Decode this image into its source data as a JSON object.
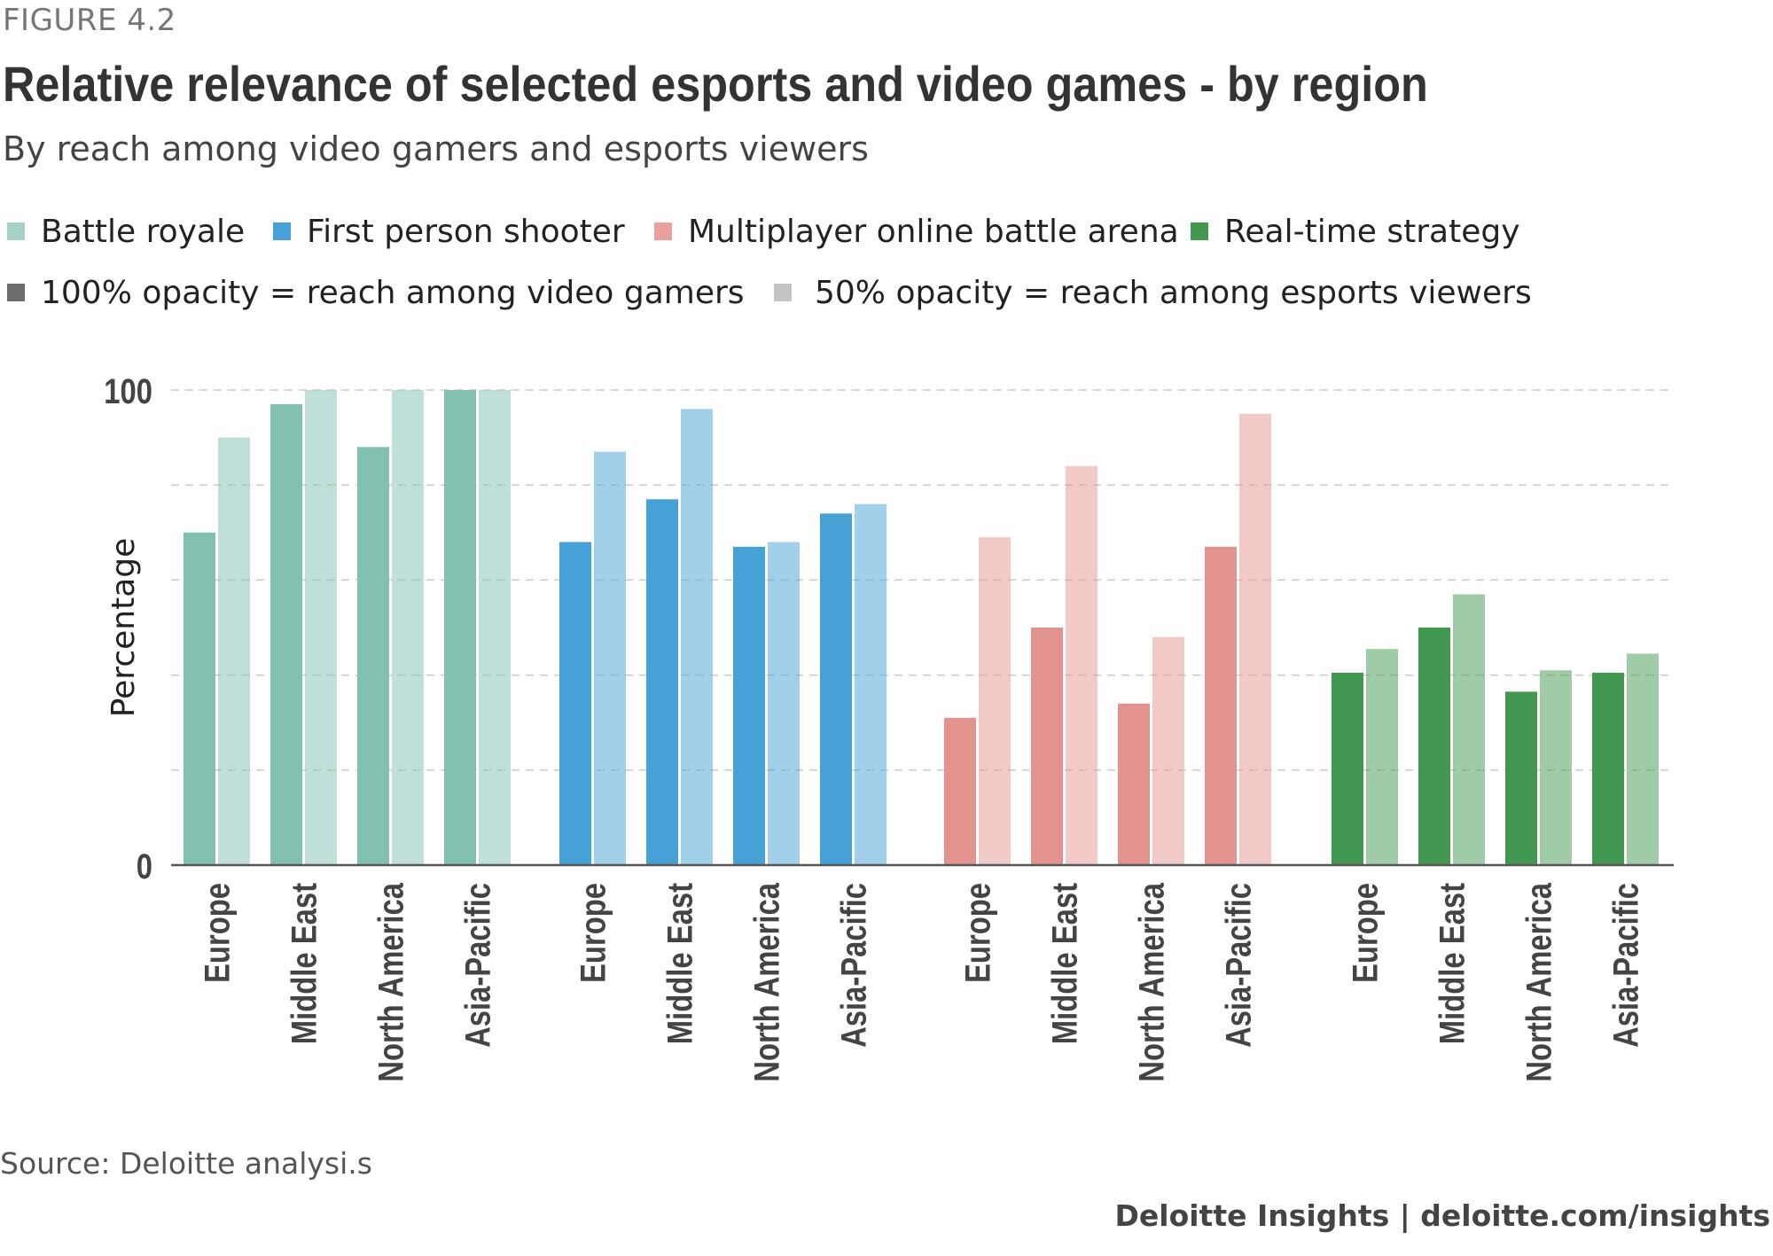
{
  "figure_label": "FIGURE 4.2",
  "source": "Source: Deloitte analysi.s",
  "credit": "Deloitte Insights | deloitte.com/insights",
  "legend": {
    "series": [
      {
        "label": "Battle royale",
        "color": "#82c0b2"
      },
      {
        "label": "First person shooter",
        "color": "#46a1d6"
      },
      {
        "label": "Multiplayer online battle arena",
        "color": "#e3938e"
      },
      {
        "label": "Real-time strategy",
        "color": "#429850"
      }
    ],
    "opacity": [
      {
        "label": "100% opacity = reach among video gamers",
        "color": "#6d6d6d"
      },
      {
        "label": "50% opacity = reach among esports viewers",
        "color": "#c4c4c4"
      }
    ]
  },
  "chart_data": {
    "type": "bar",
    "title": "Relative relevance of selected esports and video games - by region",
    "subtitle": "By reach among video gamers and esports viewers",
    "xlabel": "",
    "ylabel": "Percentage",
    "ylim": [
      0,
      100
    ],
    "yticks": [
      {
        "value": 0,
        "label": "0"
      },
      {
        "value": 100,
        "label": "100"
      }
    ],
    "gridlines": [
      20,
      40,
      60,
      80,
      100
    ],
    "categories": [
      "Europe",
      "Middle East",
      "North America",
      "Asia-Pacific"
    ],
    "groups": [
      {
        "name": "Battle royale",
        "color": "#82c0b2",
        "video_gamers": [
          70,
          97,
          88,
          100
        ],
        "esports_viewers": [
          90,
          100,
          100,
          100
        ]
      },
      {
        "name": "First person shooter",
        "color": "#46a1d6",
        "video_gamers": [
          68,
          77,
          67,
          74
        ],
        "esports_viewers": [
          87,
          96,
          68,
          76
        ]
      },
      {
        "name": "Multiplayer online battle arena",
        "color": "#e3938e",
        "video_gamers": [
          31,
          50,
          34,
          67
        ],
        "esports_viewers": [
          69,
          84,
          48,
          95
        ]
      },
      {
        "name": "Real-time strategy",
        "color": "#429850",
        "video_gamers": [
          40.5,
          50,
          36.5,
          40.5
        ],
        "esports_viewers": [
          45.5,
          57,
          41,
          44.5
        ]
      }
    ]
  }
}
